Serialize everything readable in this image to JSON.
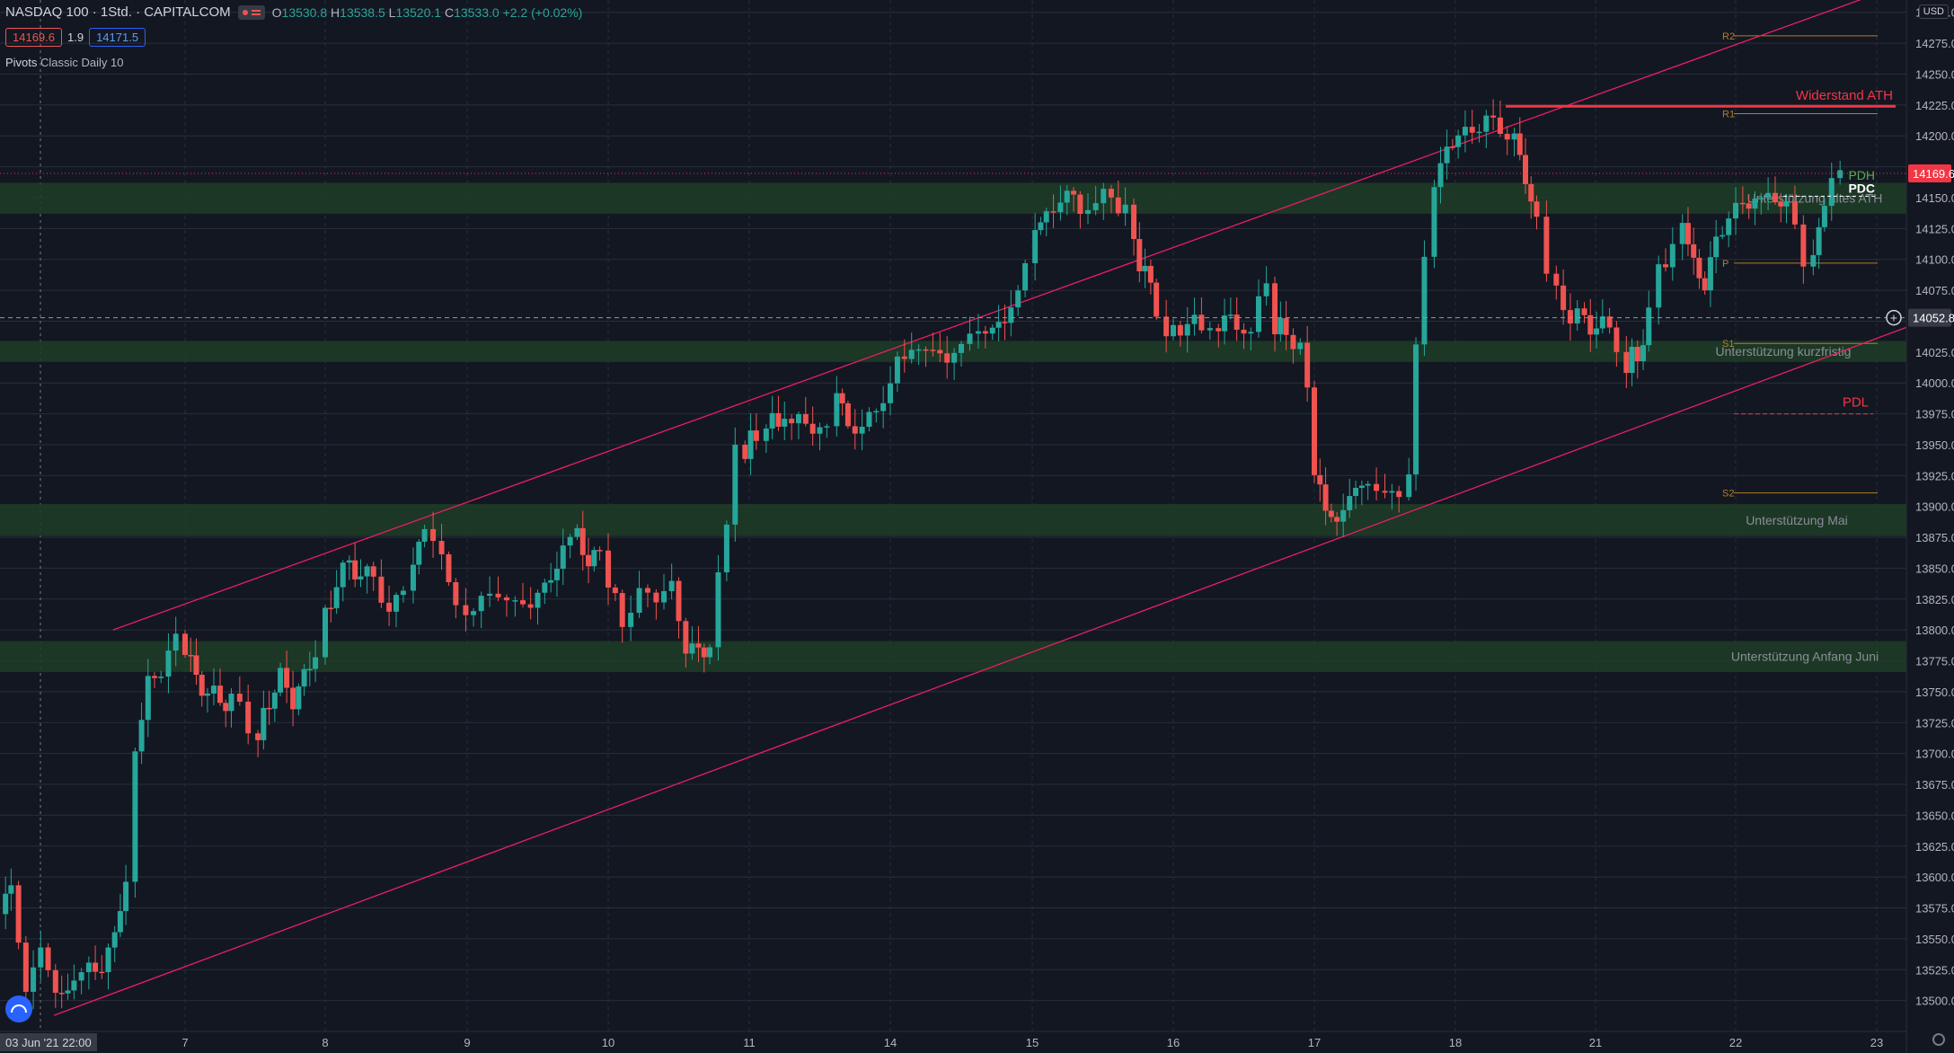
{
  "legend": {
    "symbol": "NASDAQ 100 · 1Std. · CAPITALCOM",
    "o_lbl": "O",
    "o": "13530.8",
    "h_lbl": "H",
    "h": "13538.5",
    "l_lbl": "L",
    "l": "13520.1",
    "c_lbl": "C",
    "c": "13533.0",
    "chg": "+2.2 (+0.02%)",
    "sell": "14169.6",
    "spread": "1.9",
    "buy": "14171.5",
    "indicator": "Pivots",
    "indicator_params": "Classic Daily 10"
  },
  "currency": "USD",
  "x_axis": {
    "ticks": [
      {
        "label": "03 Jun '21  22:00",
        "x": 0
      },
      {
        "label": "7",
        "x": 1
      },
      {
        "label": "8",
        "x": 2
      },
      {
        "label": "9",
        "x": 3
      },
      {
        "label": "10",
        "x": 4
      },
      {
        "label": "11",
        "x": 5
      },
      {
        "label": "14",
        "x": 6
      },
      {
        "label": "15",
        "x": 7
      },
      {
        "label": "16",
        "x": 8
      },
      {
        "label": "17",
        "x": 9
      },
      {
        "label": "18",
        "x": 10
      },
      {
        "label": "21",
        "x": 11
      },
      {
        "label": "22",
        "x": 12
      },
      {
        "label": "23",
        "x": 13
      }
    ]
  },
  "y_axis": {
    "min": 13475,
    "max": 14310,
    "ticks": [
      13500,
      13525,
      13550,
      13575,
      13600,
      13625,
      13650,
      13675,
      13700,
      13725,
      13750,
      13775,
      13800,
      13825,
      13850,
      13875,
      13900,
      13925,
      13950,
      13975,
      14000,
      14025,
      14050,
      14075,
      14100,
      14125,
      14150,
      14175,
      14200,
      14225,
      14250,
      14275,
      14300
    ],
    "labels": [
      "13500.0",
      "13525.0",
      "13550.0",
      "13575.0",
      "13600.0",
      "13625.0",
      "13650.0",
      "13675.0",
      "13700.0",
      "13725.0",
      "13750.0",
      "13775.0",
      "13800.0",
      "13825.0",
      "13850.0",
      "13875.0",
      "13900.0",
      "13925.0",
      "13950.0",
      "13975.0",
      "14000.0",
      "14025.0",
      "14050.0",
      "14075.0",
      "14100.0",
      "14125.0",
      "14150.0",
      "14175.0",
      "14200.0",
      "14225.0",
      "14250.0",
      "14275.0",
      "14300.0"
    ]
  },
  "markers": {
    "price": {
      "value": 14169.6,
      "label": "14169.6",
      "color": "#f23645"
    },
    "crosshair": {
      "value": 14052.8,
      "label": "14052.8"
    }
  },
  "zones": [
    {
      "name": "zone-altes-ath",
      "y1": 14137,
      "y2": 14162,
      "label": "Unterstützung altes ATH"
    },
    {
      "name": "zone-kurzfristig",
      "y1": 14017,
      "y2": 14034,
      "label": "Unterstützung kurzfristig"
    },
    {
      "name": "zone-mai",
      "y1": 13876,
      "y2": 13902,
      "label": "Unterstützung Mai"
    },
    {
      "name": "zone-anfang-juni",
      "y1": 13766,
      "y2": 13791,
      "label": "Unterstützung Anfang Juni"
    }
  ],
  "pivots": [
    {
      "name": "R2",
      "value": 14281,
      "color": "#b47d2a"
    },
    {
      "name": "R1",
      "value": 14218,
      "color": "#b47d2a"
    },
    {
      "name": "P",
      "value": 14097,
      "color": "#b47d2a"
    },
    {
      "name": "S1",
      "value": 14032,
      "color": "#b47d2a"
    },
    {
      "name": "S2",
      "value": 13911,
      "color": "#b47d2a"
    }
  ],
  "annotations": [
    {
      "name": "widerstand-ath",
      "label": "Widerstand ATH",
      "value": 14224,
      "color": "#f23645"
    },
    {
      "name": "pdh",
      "label": "PDH",
      "value": 14166,
      "color": "#4caf50"
    },
    {
      "name": "pdc",
      "label": "PDC",
      "value": 14157,
      "color": "#ffffff"
    },
    {
      "name": "pdl",
      "label": "PDL",
      "value": 13975,
      "color": "#f23645"
    }
  ],
  "colors": {
    "background": "#131722",
    "up": "#26a69a",
    "down": "#ef5350",
    "grid": "#2a2e39",
    "zone": "#1f3d26",
    "channel": "#e91e63",
    "axis_text": "#b2b5be"
  },
  "chart_data": {
    "type": "candlestick",
    "title": "NASDAQ 100",
    "interval": "1Std.",
    "ylim": [
      13475,
      14310
    ],
    "channel": {
      "upper": [
        {
          "x": 0.61,
          "y": 13800
        },
        {
          "x": 13.25,
          "y": 14315
        }
      ],
      "lower": [
        {
          "x": 0.0,
          "y": 13488
        },
        {
          "x": 13.48,
          "y": 14045
        }
      ]
    },
    "path": [
      [
        0,
        13570
      ],
      [
        0.06,
        13595
      ],
      [
        0.14,
        13505
      ],
      [
        0.22,
        13545
      ],
      [
        0.3,
        13505
      ],
      [
        0.4,
        13510
      ],
      [
        0.48,
        13532
      ],
      [
        0.55,
        13520
      ],
      [
        0.62,
        13560
      ],
      [
        0.68,
        13590
      ],
      [
        0.73,
        13700
      ],
      [
        0.8,
        13755
      ],
      [
        0.87,
        13770
      ],
      [
        0.95,
        13790
      ],
      [
        1.0,
        13785
      ],
      [
        1.08,
        13760
      ],
      [
        1.16,
        13750
      ],
      [
        1.25,
        13742
      ],
      [
        1.33,
        13745
      ],
      [
        1.45,
        13722
      ],
      [
        1.52,
        13718
      ],
      [
        1.6,
        13745
      ],
      [
        1.68,
        13760
      ],
      [
        1.77,
        13745
      ],
      [
        1.85,
        13760
      ],
      [
        1.93,
        13785
      ],
      [
        2.0,
        13812
      ],
      [
        2.08,
        13838
      ],
      [
        2.17,
        13855
      ],
      [
        2.25,
        13843
      ],
      [
        2.34,
        13845
      ],
      [
        2.45,
        13812
      ],
      [
        2.55,
        13835
      ],
      [
        2.62,
        13856
      ],
      [
        2.7,
        13884
      ],
      [
        2.82,
        13860
      ],
      [
        2.92,
        13820
      ],
      [
        2.99,
        13810
      ],
      [
        3.1,
        13825
      ],
      [
        3.22,
        13830
      ],
      [
        3.34,
        13820
      ],
      [
        3.45,
        13822
      ],
      [
        3.55,
        13835
      ],
      [
        3.68,
        13860
      ],
      [
        3.78,
        13882
      ],
      [
        3.86,
        13850
      ],
      [
        3.94,
        13868
      ],
      [
        4.0,
        13840
      ],
      [
        4.1,
        13810
      ],
      [
        4.22,
        13825
      ],
      [
        4.34,
        13832
      ],
      [
        4.45,
        13830
      ],
      [
        4.55,
        13790
      ],
      [
        4.64,
        13778
      ],
      [
        4.72,
        13792
      ],
      [
        4.78,
        13838
      ],
      [
        4.84,
        13895
      ],
      [
        4.9,
        13940
      ],
      [
        4.97,
        13948
      ],
      [
        5.05,
        13958
      ],
      [
        5.12,
        13970
      ],
      [
        5.25,
        13972
      ],
      [
        5.35,
        13968
      ],
      [
        5.45,
        13965
      ],
      [
        5.55,
        13960
      ],
      [
        5.62,
        13995
      ],
      [
        5.7,
        13963
      ],
      [
        5.8,
        13965
      ],
      [
        5.9,
        13978
      ],
      [
        6.0,
        13998
      ],
      [
        6.05,
        14018
      ],
      [
        6.15,
        14025
      ],
      [
        6.25,
        14028
      ],
      [
        6.4,
        14022
      ],
      [
        6.5,
        14030
      ],
      [
        6.62,
        14045
      ],
      [
        6.72,
        14040
      ],
      [
        6.85,
        14062
      ],
      [
        6.95,
        14090
      ],
      [
        7.02,
        14124
      ],
      [
        7.1,
        14132
      ],
      [
        7.2,
        14152
      ],
      [
        7.34,
        14146
      ],
      [
        7.45,
        14148
      ],
      [
        7.56,
        14150
      ],
      [
        7.66,
        14142
      ],
      [
        7.72,
        14108
      ],
      [
        7.8,
        14088
      ],
      [
        7.88,
        14062
      ],
      [
        7.95,
        14042
      ],
      [
        8.05,
        14048
      ],
      [
        8.2,
        14045
      ],
      [
        8.32,
        14050
      ],
      [
        8.45,
        14048
      ],
      [
        8.55,
        14046
      ],
      [
        8.66,
        14078
      ],
      [
        8.72,
        14048
      ],
      [
        8.8,
        14040
      ],
      [
        8.9,
        14030
      ],
      [
        8.95,
        13990
      ],
      [
        9.0,
        13930
      ],
      [
        9.08,
        13900
      ],
      [
        9.16,
        13885
      ],
      [
        9.25,
        13910
      ],
      [
        9.38,
        13920
      ],
      [
        9.5,
        13910
      ],
      [
        9.6,
        13910
      ],
      [
        9.67,
        13928
      ],
      [
        9.72,
        14030
      ],
      [
        9.78,
        14102
      ],
      [
        9.85,
        14160
      ],
      [
        9.94,
        14190
      ],
      [
        10.02,
        14200
      ],
      [
        10.12,
        14205
      ],
      [
        10.22,
        14212
      ],
      [
        10.32,
        14208
      ],
      [
        10.42,
        14194
      ],
      [
        10.5,
        14170
      ],
      [
        10.58,
        14125
      ],
      [
        10.65,
        14090
      ],
      [
        10.72,
        14075
      ],
      [
        10.82,
        14055
      ],
      [
        10.92,
        14050
      ],
      [
        11.05,
        14045
      ],
      [
        11.15,
        14025
      ],
      [
        11.22,
        14018
      ],
      [
        11.3,
        14022
      ],
      [
        11.38,
        14055
      ],
      [
        11.45,
        14090
      ],
      [
        11.55,
        14105
      ],
      [
        11.62,
        14128
      ],
      [
        11.7,
        14095
      ],
      [
        11.78,
        14080
      ],
      [
        11.86,
        14115
      ],
      [
        11.95,
        14135
      ],
      [
        12.05,
        14145
      ],
      [
        12.18,
        14150
      ],
      [
        12.28,
        14148
      ],
      [
        12.36,
        14145
      ],
      [
        12.42,
        14126
      ],
      [
        12.48,
        14095
      ],
      [
        12.55,
        14104
      ],
      [
        12.63,
        14145
      ],
      [
        12.68,
        14168
      ],
      [
        12.74,
        14170
      ]
    ]
  }
}
